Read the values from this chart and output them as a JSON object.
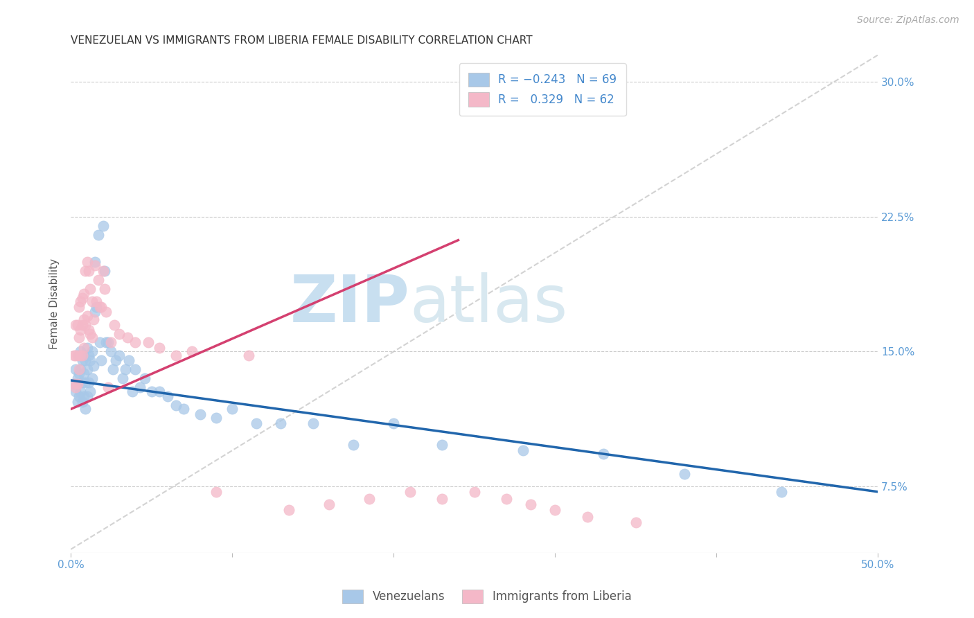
{
  "title": "VENEZUELAN VS IMMIGRANTS FROM LIBERIA FEMALE DISABILITY CORRELATION CHART",
  "source": "Source: ZipAtlas.com",
  "ylabel": "Female Disability",
  "yticks": [
    0.075,
    0.15,
    0.225,
    0.3
  ],
  "ytick_labels": [
    "7.5%",
    "15.0%",
    "22.5%",
    "30.0%"
  ],
  "xlim": [
    0.0,
    0.5
  ],
  "ylim": [
    0.038,
    0.315
  ],
  "blue_color": "#a8c8e8",
  "pink_color": "#f4b8c8",
  "blue_line_color": "#2166ac",
  "pink_line_color": "#d44070",
  "diagonal_color": "#c8c8c8",
  "watermark_zip": "ZIP",
  "watermark_atlas": "atlas",
  "legend_label_blue": "Venezuelans",
  "legend_label_pink": "Immigrants from Liberia",
  "ven_line_x0": 0.0,
  "ven_line_y0": 0.134,
  "ven_line_x1": 0.5,
  "ven_line_y1": 0.072,
  "lib_line_x0": 0.0,
  "lib_line_y0": 0.118,
  "lib_line_x1": 0.24,
  "lib_line_y1": 0.212,
  "venezuelan_x": [
    0.002,
    0.003,
    0.003,
    0.004,
    0.004,
    0.005,
    0.005,
    0.005,
    0.006,
    0.006,
    0.006,
    0.007,
    0.007,
    0.007,
    0.008,
    0.008,
    0.008,
    0.009,
    0.009,
    0.009,
    0.01,
    0.01,
    0.01,
    0.011,
    0.011,
    0.012,
    0.012,
    0.013,
    0.013,
    0.014,
    0.015,
    0.015,
    0.016,
    0.017,
    0.018,
    0.019,
    0.02,
    0.021,
    0.022,
    0.023,
    0.025,
    0.026,
    0.028,
    0.03,
    0.032,
    0.034,
    0.036,
    0.038,
    0.04,
    0.043,
    0.046,
    0.05,
    0.055,
    0.06,
    0.065,
    0.07,
    0.08,
    0.09,
    0.1,
    0.115,
    0.13,
    0.15,
    0.175,
    0.2,
    0.23,
    0.28,
    0.33,
    0.38,
    0.44
  ],
  "venezuelan_y": [
    0.132,
    0.14,
    0.128,
    0.135,
    0.122,
    0.148,
    0.138,
    0.125,
    0.15,
    0.14,
    0.128,
    0.145,
    0.133,
    0.122,
    0.148,
    0.138,
    0.125,
    0.145,
    0.133,
    0.118,
    0.152,
    0.14,
    0.125,
    0.148,
    0.133,
    0.145,
    0.128,
    0.15,
    0.135,
    0.142,
    0.2,
    0.172,
    0.175,
    0.215,
    0.155,
    0.145,
    0.22,
    0.195,
    0.155,
    0.155,
    0.15,
    0.14,
    0.145,
    0.148,
    0.135,
    0.14,
    0.145,
    0.128,
    0.14,
    0.13,
    0.135,
    0.128,
    0.128,
    0.125,
    0.12,
    0.118,
    0.115,
    0.113,
    0.118,
    0.11,
    0.11,
    0.11,
    0.098,
    0.11,
    0.098,
    0.095,
    0.093,
    0.082,
    0.072
  ],
  "liberia_x": [
    0.002,
    0.002,
    0.003,
    0.003,
    0.003,
    0.004,
    0.004,
    0.004,
    0.005,
    0.005,
    0.005,
    0.006,
    0.006,
    0.006,
    0.007,
    0.007,
    0.007,
    0.008,
    0.008,
    0.008,
    0.009,
    0.009,
    0.01,
    0.01,
    0.011,
    0.011,
    0.012,
    0.012,
    0.013,
    0.013,
    0.014,
    0.015,
    0.016,
    0.017,
    0.018,
    0.019,
    0.02,
    0.021,
    0.022,
    0.023,
    0.025,
    0.027,
    0.03,
    0.035,
    0.04,
    0.048,
    0.055,
    0.065,
    0.075,
    0.09,
    0.11,
    0.135,
    0.16,
    0.185,
    0.21,
    0.23,
    0.25,
    0.27,
    0.285,
    0.3,
    0.32,
    0.35
  ],
  "liberia_y": [
    0.148,
    0.132,
    0.165,
    0.148,
    0.13,
    0.165,
    0.148,
    0.132,
    0.175,
    0.158,
    0.14,
    0.178,
    0.162,
    0.148,
    0.18,
    0.165,
    0.148,
    0.182,
    0.168,
    0.152,
    0.195,
    0.165,
    0.2,
    0.17,
    0.195,
    0.162,
    0.185,
    0.16,
    0.178,
    0.158,
    0.168,
    0.198,
    0.178,
    0.19,
    0.175,
    0.175,
    0.195,
    0.185,
    0.172,
    0.13,
    0.155,
    0.165,
    0.16,
    0.158,
    0.155,
    0.155,
    0.152,
    0.148,
    0.15,
    0.072,
    0.148,
    0.062,
    0.065,
    0.068,
    0.072,
    0.068,
    0.072,
    0.068,
    0.065,
    0.062,
    0.058,
    0.055
  ]
}
